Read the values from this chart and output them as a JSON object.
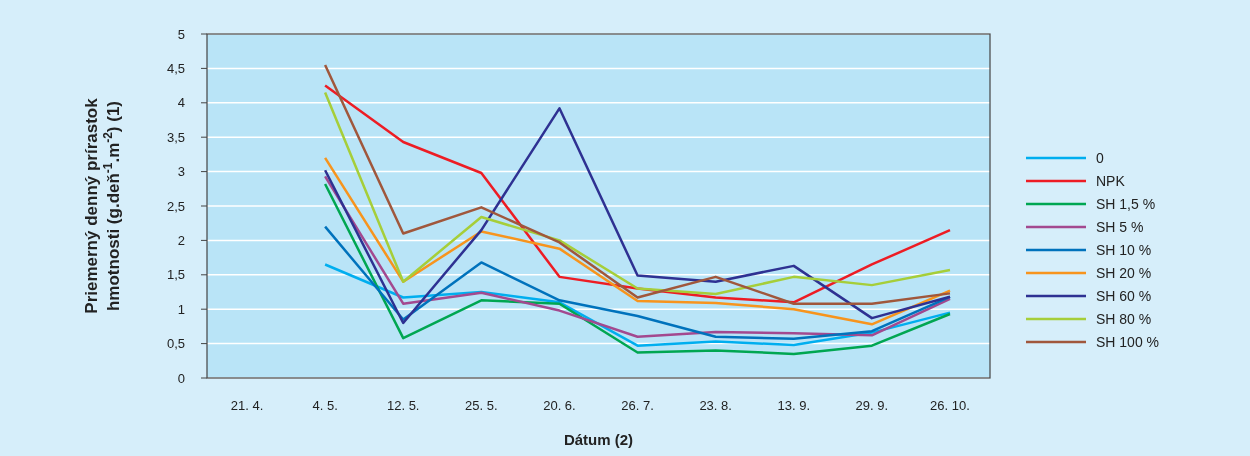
{
  "chart_data": {
    "type": "line",
    "xlabel": "Dátum (2)",
    "ylabel": "Priemerný denný prírastok\nhmotnosti (g.deň$^{-1}$.m$^{-2}$) (1)",
    "categories": [
      "21. 4.",
      "4. 5.",
      "12. 5.",
      "25. 5.",
      "20. 6.",
      "26. 7.",
      "23. 8.",
      "13. 9.",
      "29. 9.",
      "26. 10."
    ],
    "ylim": [
      0,
      5
    ],
    "yticks": [
      0,
      {
        "value": 0.5,
        "label": "0,5"
      },
      1,
      {
        "value": 1.5,
        "label": "1,5"
      },
      2,
      {
        "value": 2.5,
        "label": "2,5"
      },
      3,
      {
        "value": 3.5,
        "label": "3,5"
      },
      4,
      {
        "value": 4.5,
        "label": "4,5"
      },
      5
    ],
    "grid": "y",
    "legend": "right",
    "marker": "none",
    "line_style": "solid",
    "series": [
      {
        "name": "0",
        "color": "#00aeef",
        "values": [
          null,
          1.65,
          1.17,
          1.25,
          1.1,
          0.47,
          0.53,
          0.48,
          0.66,
          0.95
        ]
      },
      {
        "name": "NPK",
        "color": "#ed1c24",
        "values": [
          null,
          4.25,
          3.43,
          2.98,
          1.47,
          1.3,
          1.17,
          1.1,
          1.65,
          2.15
        ]
      },
      {
        "name": "SH 1,5 %",
        "color": "#00a651",
        "values": [
          null,
          2.82,
          0.58,
          1.13,
          1.08,
          0.37,
          0.4,
          0.35,
          0.47,
          0.93
        ]
      },
      {
        "name": "SH 5 %",
        "color": "#a3498f",
        "values": [
          null,
          2.93,
          1.08,
          1.24,
          0.98,
          0.6,
          0.67,
          0.65,
          0.62,
          1.15
        ]
      },
      {
        "name": "SH 10 %",
        "color": "#0072bc",
        "values": [
          null,
          2.2,
          0.85,
          1.68,
          1.13,
          0.9,
          0.6,
          0.57,
          0.68,
          1.18
        ]
      },
      {
        "name": "SH 20 %",
        "color": "#f7941d",
        "values": [
          null,
          3.2,
          1.4,
          2.13,
          1.88,
          1.12,
          1.09,
          1.0,
          0.78,
          1.27
        ]
      },
      {
        "name": "SH 60 %",
        "color": "#2e3192",
        "values": [
          null,
          3.02,
          0.8,
          2.15,
          3.92,
          1.49,
          1.4,
          1.63,
          0.87,
          1.18
        ]
      },
      {
        "name": "SH 80 %",
        "color": "#a6ce39",
        "values": [
          null,
          4.15,
          1.4,
          2.34,
          2.0,
          1.3,
          1.22,
          1.47,
          1.35,
          1.57
        ]
      },
      {
        "name": "SH 100 %",
        "color": "#a0573c",
        "values": [
          null,
          4.55,
          2.1,
          2.48,
          1.97,
          1.17,
          1.47,
          1.08,
          1.08,
          1.23
        ]
      }
    ]
  }
}
